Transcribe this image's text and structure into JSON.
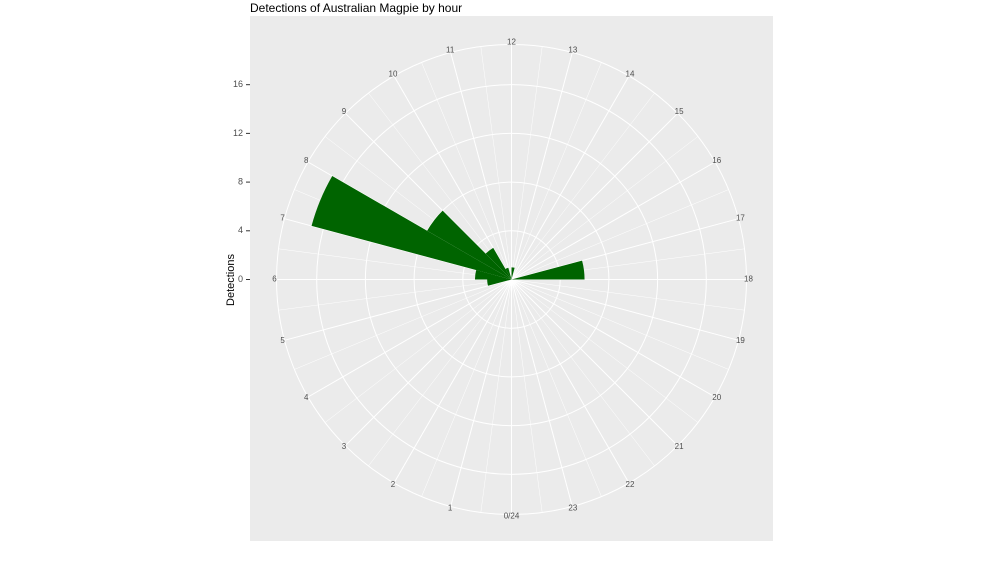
{
  "chart_data": {
    "type": "polar_bar",
    "title": "Detections of Australian Magpie by hour",
    "ylabel": "Detections",
    "categories": [
      "0/24",
      "1",
      "2",
      "3",
      "4",
      "5",
      "6",
      "7",
      "8",
      "9",
      "10",
      "11",
      "12",
      "13",
      "14",
      "15",
      "16",
      "17",
      "18",
      "19",
      "20",
      "21",
      "22",
      "23"
    ],
    "values": [
      0,
      0,
      0,
      0,
      0,
      2,
      3,
      17,
      8,
      3,
      1,
      0,
      1,
      0,
      0,
      0,
      0,
      6,
      0,
      0,
      0,
      0,
      0,
      0
    ],
    "color": "#006400",
    "ylim": [
      0,
      19.3
    ],
    "yticks": [
      0,
      4,
      8,
      12,
      16
    ],
    "grid": true
  }
}
